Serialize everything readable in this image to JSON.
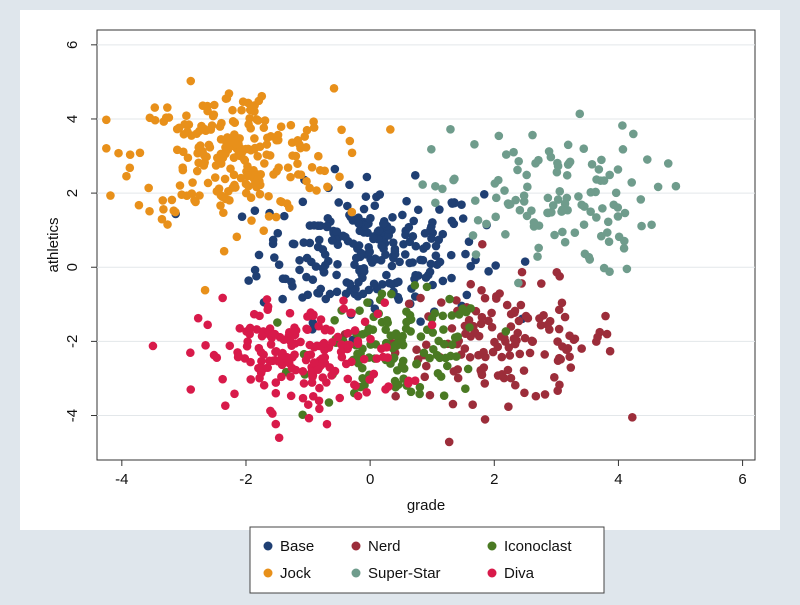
{
  "chart_data": {
    "type": "scatter",
    "title": "",
    "xlabel": "grade",
    "ylabel": "athletics",
    "xlim": [
      -4.4,
      6.2
    ],
    "ylim": [
      -5.2,
      6.4
    ],
    "xticks": [
      -4,
      -2,
      0,
      2,
      4,
      6
    ],
    "yticks": [
      -4,
      -2,
      0,
      2,
      4,
      6
    ],
    "grid": "horizontal",
    "legend_position": "bottom",
    "series": [
      {
        "name": "Base",
        "color": "#1f3f73",
        "center": [
          0.0,
          0.4
        ],
        "spread": [
          0.9,
          0.9
        ],
        "count": 240
      },
      {
        "name": "Nerd",
        "color": "#9c2d3a",
        "center": [
          2.2,
          -2.0
        ],
        "spread": [
          0.9,
          0.8
        ],
        "count": 140
      },
      {
        "name": "Iconoclast",
        "color": "#4a7a23",
        "center": [
          0.5,
          -2.2
        ],
        "spread": [
          0.7,
          0.7
        ],
        "count": 120
      },
      {
        "name": "Jock",
        "color": "#e8901a",
        "center": [
          -2.2,
          3.0
        ],
        "spread": [
          0.8,
          0.9
        ],
        "count": 230
      },
      {
        "name": "Super-Star",
        "color": "#6f9c8c",
        "center": [
          2.8,
          1.8
        ],
        "spread": [
          0.9,
          1.0
        ],
        "count": 120
      },
      {
        "name": "Diva",
        "color": "#d81a4a",
        "center": [
          -1.1,
          -2.4
        ],
        "spread": [
          0.8,
          0.7
        ],
        "count": 180
      }
    ],
    "legend": [
      {
        "label": "Base",
        "color": "#1f3f73"
      },
      {
        "label": "Nerd",
        "color": "#9c2d3a"
      },
      {
        "label": "Iconoclast",
        "color": "#4a7a23"
      },
      {
        "label": "Jock",
        "color": "#e8901a"
      },
      {
        "label": "Super-Star",
        "color": "#6f9c8c"
      },
      {
        "label": "Diva",
        "color": "#d81a4a"
      }
    ]
  }
}
